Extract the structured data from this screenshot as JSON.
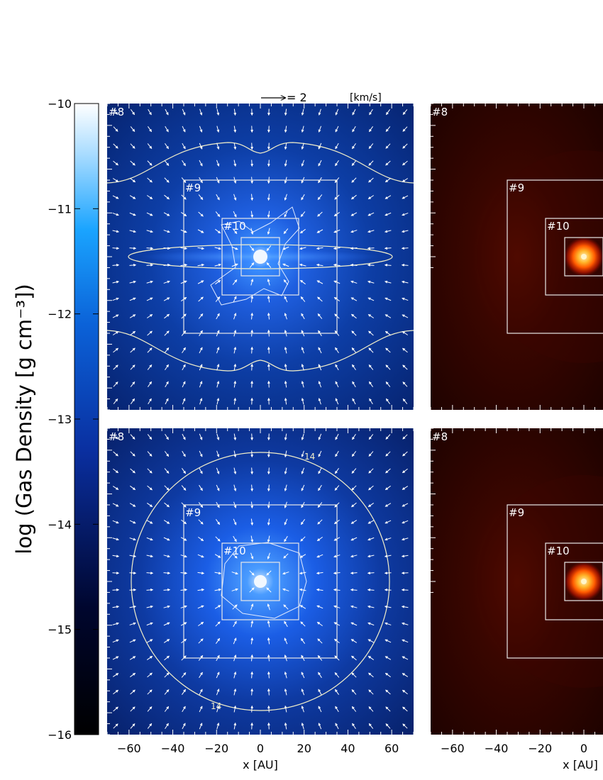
{
  "colorbar": {
    "label": "log (Gas Density [g cm⁻³])",
    "min": -16,
    "max": -10,
    "ticks": [
      "−10",
      "−11",
      "−12",
      "−13",
      "−14",
      "−15",
      "−16"
    ]
  },
  "velocity_key": {
    "value_text": "= 2",
    "unit_text": "[km/s]"
  },
  "x_axis": {
    "label": "x [AU]",
    "ticks": [
      "−60",
      "−40",
      "−20",
      "0",
      "20",
      "40",
      "60"
    ]
  },
  "panels": [
    {
      "id": "top-left",
      "labels": [
        "#8",
        "#9",
        "#10"
      ],
      "contour_label": ""
    },
    {
      "id": "top-right",
      "labels": [
        "#8",
        "#9",
        "#10"
      ]
    },
    {
      "id": "bottom-left",
      "labels": [
        "#8",
        "#9",
        "#10"
      ],
      "contour_label": "14"
    },
    {
      "id": "bottom-right",
      "labels": [
        "#8",
        "#9",
        "#10"
      ]
    }
  ],
  "chart_data": {
    "type": "heatmap",
    "title": "",
    "xlabel": "x [AU]",
    "xlim": [
      -70,
      70
    ],
    "colorbar_label": "log (Gas Density [g cm⁻³])",
    "colorbar_range": [
      -16,
      -10
    ],
    "nested_grid_levels": [
      "#8",
      "#9",
      "#10"
    ],
    "grid_box_half_widths_au": {
      "#8": 70,
      "#9": 35,
      "#10": 17.5,
      "inner": 8.75
    },
    "velocity_arrow_reference_kms": 2,
    "density_contour_label": "14",
    "panels": [
      {
        "row": 1,
        "col": 1,
        "colormap": "blue",
        "feature": "flattened disk with vertical outflow cavity, velocity arrows"
      },
      {
        "row": 1,
        "col": 2,
        "colormap": "red",
        "feature": "compact central source"
      },
      {
        "row": 2,
        "col": 1,
        "colormap": "blue",
        "feature": "spherical collapse, circular contour, velocity arrows"
      },
      {
        "row": 2,
        "col": 2,
        "colormap": "red",
        "feature": "compact central source"
      }
    ]
  }
}
